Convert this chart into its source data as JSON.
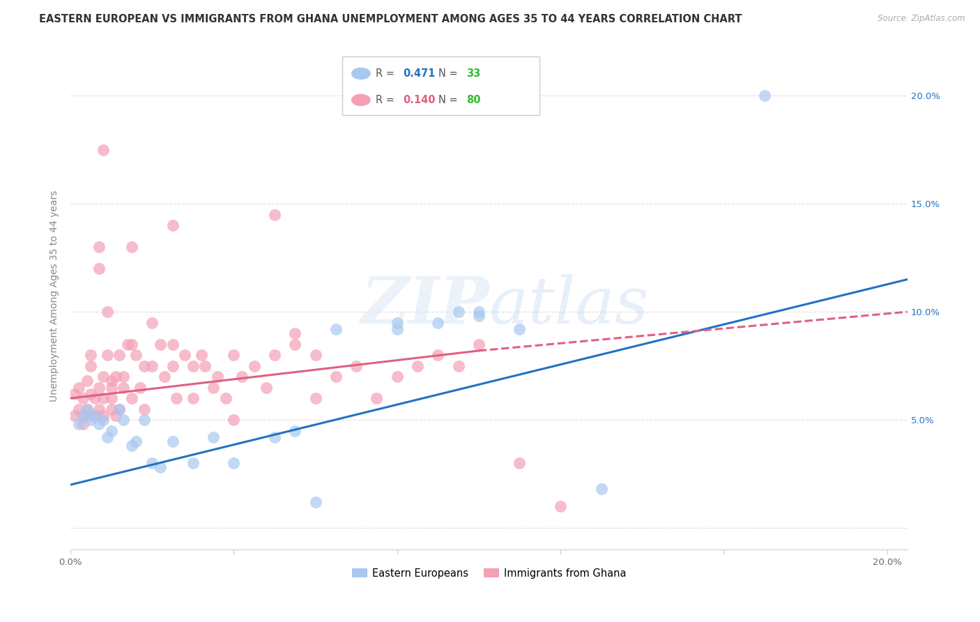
{
  "title": "EASTERN EUROPEAN VS IMMIGRANTS FROM GHANA UNEMPLOYMENT AMONG AGES 35 TO 44 YEARS CORRELATION CHART",
  "source": "Source: ZipAtlas.com",
  "ylabel": "Unemployment Among Ages 35 to 44 years",
  "xlim": [
    0.0,
    0.205
  ],
  "ylim": [
    -0.01,
    0.225
  ],
  "xticks": [
    0.0,
    0.04,
    0.08,
    0.12,
    0.16,
    0.2
  ],
  "yticks": [
    0.0,
    0.05,
    0.1,
    0.15,
    0.2
  ],
  "background_color": "#ffffff",
  "watermark": "ZIPatlas",
  "blue_scatter_color": "#a8c8f0",
  "blue_line_color": "#2272c3",
  "pink_scatter_color": "#f5a0b5",
  "pink_line_color": "#e06080",
  "R_blue": "0.471",
  "N_blue": "33",
  "R_pink": "0.140",
  "N_pink": "80",
  "legend_series_1": "Eastern Europeans",
  "legend_series_2": "Immigrants from Ghana",
  "blue_line_x0": 0.0,
  "blue_line_y0": 0.02,
  "blue_line_x1": 0.205,
  "blue_line_y1": 0.115,
  "pink_line_solid_x0": 0.0,
  "pink_line_solid_y0": 0.06,
  "pink_line_solid_x1": 0.1,
  "pink_line_solid_y1": 0.082,
  "pink_line_dash_x0": 0.1,
  "pink_line_dash_y0": 0.082,
  "pink_line_dash_x1": 0.205,
  "pink_line_dash_y1": 0.1,
  "blue_x": [
    0.002,
    0.003,
    0.004,
    0.005,
    0.006,
    0.007,
    0.008,
    0.009,
    0.01,
    0.012,
    0.013,
    0.015,
    0.016,
    0.018,
    0.02,
    0.022,
    0.025,
    0.03,
    0.035,
    0.04,
    0.05,
    0.055,
    0.06,
    0.065,
    0.08,
    0.08,
    0.09,
    0.095,
    0.1,
    0.1,
    0.11,
    0.13,
    0.17
  ],
  "blue_y": [
    0.048,
    0.052,
    0.055,
    0.05,
    0.052,
    0.048,
    0.05,
    0.042,
    0.045,
    0.055,
    0.05,
    0.038,
    0.04,
    0.05,
    0.03,
    0.028,
    0.04,
    0.03,
    0.042,
    0.03,
    0.042,
    0.045,
    0.012,
    0.092,
    0.095,
    0.092,
    0.095,
    0.1,
    0.098,
    0.1,
    0.092,
    0.018,
    0.2
  ],
  "pink_x": [
    0.001,
    0.001,
    0.002,
    0.002,
    0.003,
    0.003,
    0.003,
    0.004,
    0.004,
    0.005,
    0.005,
    0.005,
    0.005,
    0.006,
    0.006,
    0.007,
    0.007,
    0.008,
    0.008,
    0.008,
    0.009,
    0.009,
    0.01,
    0.01,
    0.01,
    0.011,
    0.011,
    0.012,
    0.012,
    0.013,
    0.013,
    0.014,
    0.015,
    0.015,
    0.016,
    0.017,
    0.018,
    0.018,
    0.02,
    0.02,
    0.022,
    0.023,
    0.025,
    0.025,
    0.026,
    0.028,
    0.03,
    0.03,
    0.032,
    0.033,
    0.035,
    0.036,
    0.038,
    0.04,
    0.042,
    0.045,
    0.048,
    0.05,
    0.055,
    0.055,
    0.06,
    0.06,
    0.065,
    0.07,
    0.075,
    0.08,
    0.085,
    0.09,
    0.095,
    0.1,
    0.11,
    0.12,
    0.04,
    0.008,
    0.015,
    0.025,
    0.05,
    0.007,
    0.007,
    0.01
  ],
  "pink_y": [
    0.052,
    0.062,
    0.055,
    0.065,
    0.048,
    0.052,
    0.06,
    0.055,
    0.068,
    0.052,
    0.062,
    0.075,
    0.08,
    0.052,
    0.06,
    0.055,
    0.065,
    0.052,
    0.06,
    0.07,
    0.08,
    0.1,
    0.055,
    0.06,
    0.065,
    0.052,
    0.07,
    0.055,
    0.08,
    0.065,
    0.07,
    0.085,
    0.06,
    0.085,
    0.08,
    0.065,
    0.055,
    0.075,
    0.075,
    0.095,
    0.085,
    0.07,
    0.075,
    0.085,
    0.06,
    0.08,
    0.06,
    0.075,
    0.08,
    0.075,
    0.065,
    0.07,
    0.06,
    0.08,
    0.07,
    0.075,
    0.065,
    0.08,
    0.085,
    0.09,
    0.06,
    0.08,
    0.07,
    0.075,
    0.06,
    0.07,
    0.075,
    0.08,
    0.075,
    0.085,
    0.03,
    0.01,
    0.05,
    0.175,
    0.13,
    0.14,
    0.145,
    0.12,
    0.13,
    0.068
  ]
}
